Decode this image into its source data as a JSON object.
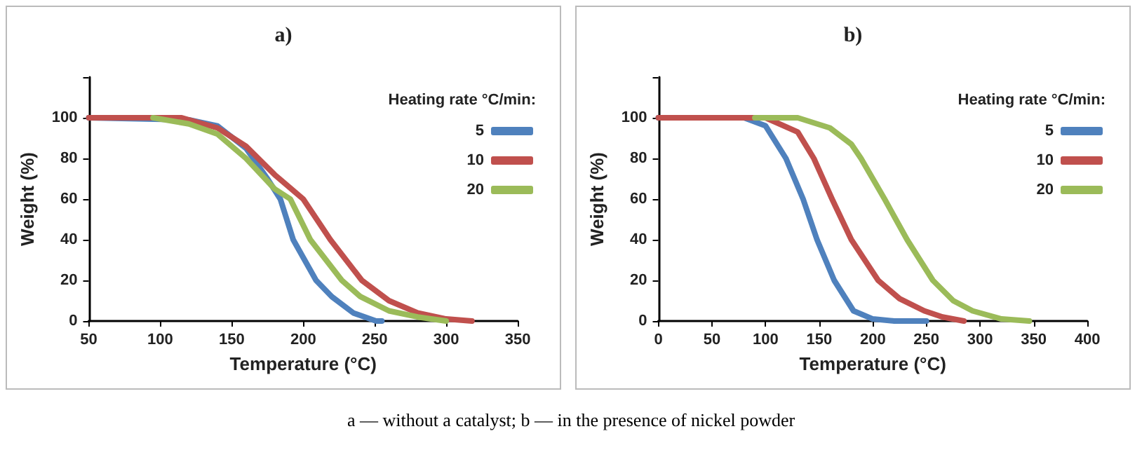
{
  "chart_data": [
    {
      "type": "line",
      "title": "a)",
      "xlabel": "Temperature (°C)",
      "ylabel": "Weight (%)",
      "legend_title": "Heating rate °C/min:",
      "legend": "top right",
      "grid": false,
      "marker": "none",
      "line_style": "solid",
      "xlim": [
        50,
        350
      ],
      "xticks": [
        50,
        100,
        150,
        200,
        250,
        300,
        350
      ],
      "ylim": [
        0,
        120
      ],
      "yticks": [
        0,
        20,
        40,
        60,
        80,
        100,
        {
          "value": 120,
          "label": null
        }
      ],
      "series": [
        {
          "name": "5",
          "color": "#4f81bd",
          "x": [
            50,
            120,
            140,
            160,
            175,
            184,
            193,
            209,
            220,
            235,
            251,
            255
          ],
          "values": [
            100,
            99,
            96,
            85,
            70,
            60,
            40,
            20,
            12,
            4,
            0,
            0
          ]
        },
        {
          "name": "10",
          "color": "#c0504d",
          "x": [
            50,
            115,
            140,
            160,
            180,
            200,
            219,
            241,
            260,
            280,
            300,
            318
          ],
          "values": [
            100,
            100,
            95,
            86,
            72,
            60,
            40,
            20,
            10,
            4,
            1,
            0
          ]
        },
        {
          "name": "20",
          "color": "#9bbb59",
          "x": [
            95,
            120,
            140,
            160,
            180,
            191,
            205,
            227,
            240,
            260,
            280,
            300
          ],
          "values": [
            100,
            97,
            92,
            80,
            65,
            60,
            40,
            20,
            12,
            5,
            2,
            0
          ]
        }
      ]
    },
    {
      "type": "line",
      "title": "b)",
      "xlabel": "Temperature (°C)",
      "ylabel": "Weight (%)",
      "legend_title": "Heating rate °C/min:",
      "legend": "top right",
      "grid": false,
      "marker": "none",
      "line_style": "solid",
      "xlim": [
        0,
        400
      ],
      "xticks": [
        0,
        50,
        100,
        150,
        200,
        250,
        300,
        350,
        400
      ],
      "ylim": [
        0,
        120
      ],
      "yticks": [
        0,
        20,
        40,
        60,
        80,
        100,
        {
          "value": 120,
          "label": null
        }
      ],
      "annotations": [
        "a — without a catalyst; b — in the presence of nickel powder"
      ],
      "series": [
        {
          "name": "5",
          "color": "#4f81bd",
          "x": [
            0,
            80,
            100,
            119,
            135,
            148,
            164,
            182,
            200,
            220,
            250
          ],
          "values": [
            100,
            100,
            96,
            80,
            60,
            40,
            20,
            5,
            1,
            0,
            0
          ]
        },
        {
          "name": "10",
          "color": "#c0504d",
          "x": [
            0,
            100,
            130,
            145,
            162,
            180,
            205,
            225,
            248,
            265,
            285
          ],
          "values": [
            100,
            100,
            93,
            80,
            60,
            40,
            20,
            11,
            5,
            2,
            0
          ]
        },
        {
          "name": "20",
          "color": "#9bbb59",
          "x": [
            90,
            130,
            160,
            180,
            189,
            211,
            232,
            256,
            275,
            293,
            320,
            346
          ],
          "values": [
            100,
            100,
            95,
            87,
            80,
            60,
            40,
            20,
            10,
            5,
            1,
            0
          ]
        }
      ]
    }
  ]
}
